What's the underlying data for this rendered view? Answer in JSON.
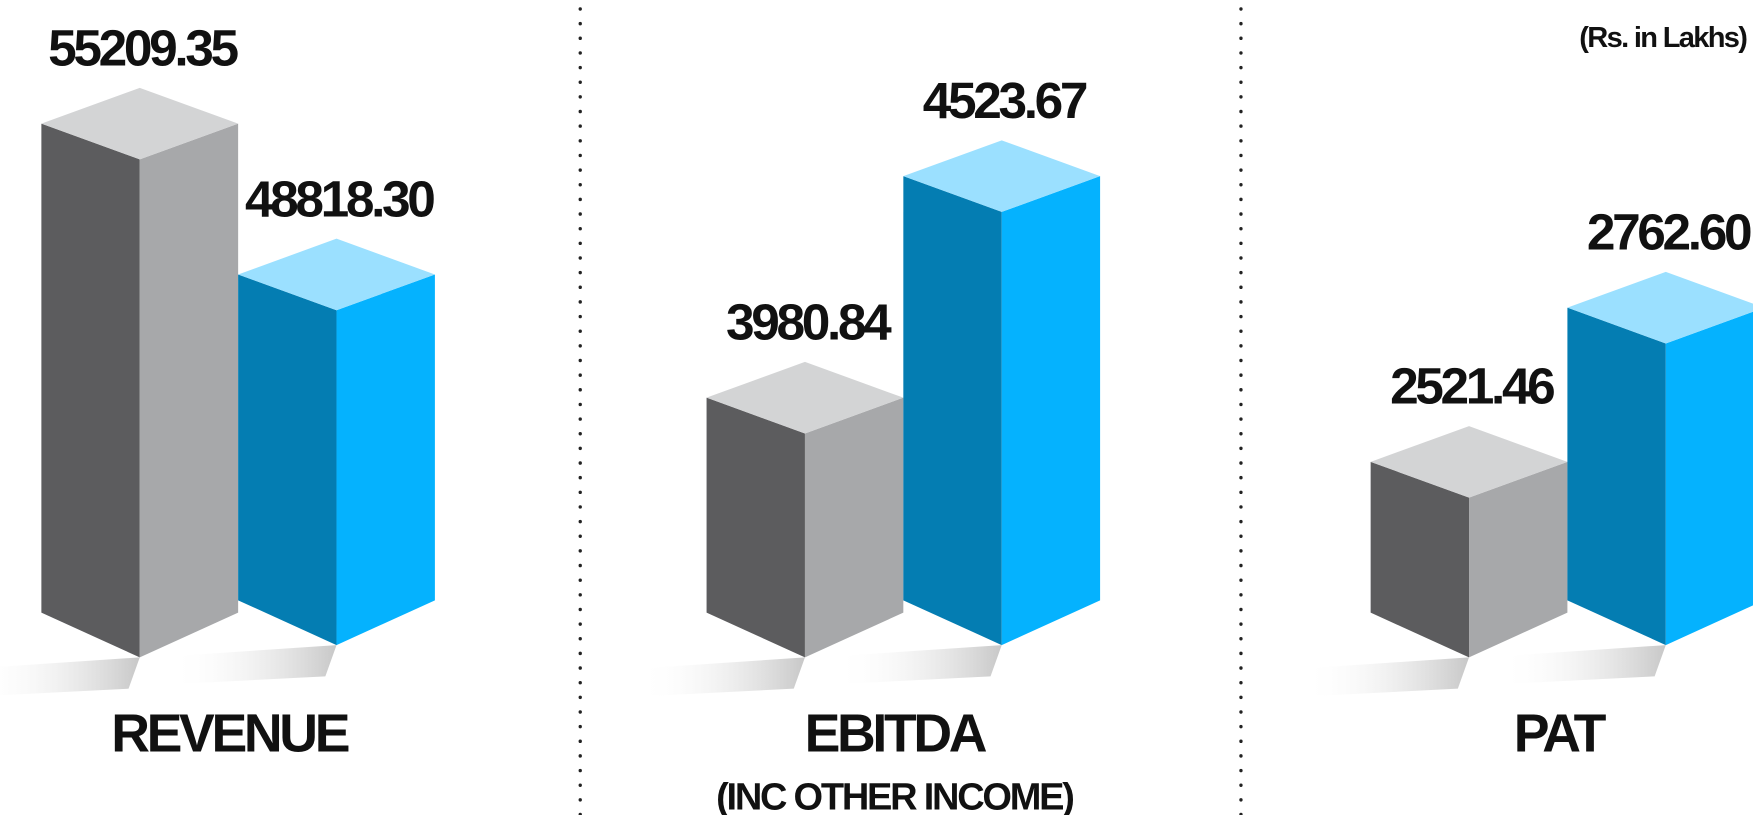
{
  "unit_note": "(Rs. in Lakhs)",
  "chart_data": [
    {
      "type": "bar3d",
      "title": "REVENUE",
      "values": [
        55209.35,
        48818.3
      ],
      "value_labels": [
        "55209.35",
        "48818.30"
      ],
      "colors": [
        "#a7a8aa",
        "#05b2fe"
      ],
      "ylim": [
        35700,
        57600
      ]
    },
    {
      "type": "bar3d",
      "title": "EBITDA",
      "subtitle": "(INC OTHER INCOME)",
      "values": [
        3980.84,
        4523.67
      ],
      "value_labels": [
        "3980.84",
        "4523.67"
      ],
      "colors": [
        "#a7a8aa",
        "#05b2fe"
      ],
      "ylim": [
        3400,
        4850
      ]
    },
    {
      "type": "bar3d",
      "title": "PAT",
      "values": [
        2521.46,
        2762.6
      ],
      "value_labels": [
        "2521.46",
        "2762.60"
      ],
      "colors": [
        "#a7a8aa",
        "#05b2fe"
      ],
      "ylim": [
        2250,
        3200
      ]
    }
  ]
}
